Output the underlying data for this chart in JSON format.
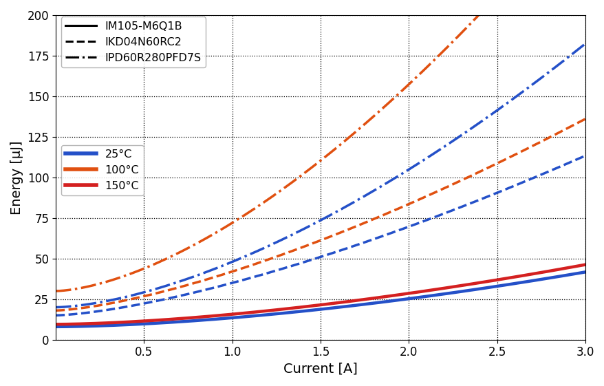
{
  "xlabel": "Current [A]",
  "ylabel": "Energy [μJ]",
  "xlim": [
    0.0,
    3.0
  ],
  "ylim": [
    0,
    200
  ],
  "x_ticks": [
    0.5,
    1.0,
    1.5,
    2.0,
    2.5,
    3.0
  ],
  "y_ticks": [
    0,
    25,
    50,
    75,
    100,
    125,
    150,
    175,
    200
  ],
  "curves": {
    "IM105-M6Q1B_25C": {
      "style": "solid",
      "color": "#2450c8",
      "c0": 8.0,
      "c1": 5.5,
      "n": 1.65
    },
    "IM105-M6Q1B_150C": {
      "style": "solid",
      "color": "#d42020",
      "c0": 9.5,
      "c1": 6.2,
      "n": 1.62
    },
    "IKD04N60RC2_25C": {
      "style": "dashed",
      "color": "#2450c8",
      "c0": 15.0,
      "c1": 20.0,
      "n": 1.45
    },
    "IKD04N60RC2_100C": {
      "style": "dashed",
      "color": "#e05010",
      "c0": 18.0,
      "c1": 24.0,
      "n": 1.45
    },
    "IPD60R280PFD7S_25C": {
      "style": "dashdot",
      "color": "#2450c8",
      "c0": 20.0,
      "c1": 28.0,
      "n": 1.6
    },
    "IPD60R280PFD7S_100C": {
      "style": "dashdot",
      "color": "#e05010",
      "c0": 30.0,
      "c1": 42.0,
      "n": 1.6
    }
  },
  "leg1_entries": [
    {
      "label": "IM105-M6Q1B",
      "style": "solid"
    },
    {
      "label": "IKD04N60RC2",
      "style": "dashed"
    },
    {
      "label": "IPD60R280PFD7S",
      "style": "dashdot"
    }
  ],
  "leg2_entries": [
    {
      "label": "25°C",
      "color": "#2450c8"
    },
    {
      "label": "100°C",
      "color": "#e05010"
    },
    {
      "label": "150°C",
      "color": "#d42020"
    }
  ],
  "linewidth": 2.5,
  "bold_linewidth": 3.2
}
